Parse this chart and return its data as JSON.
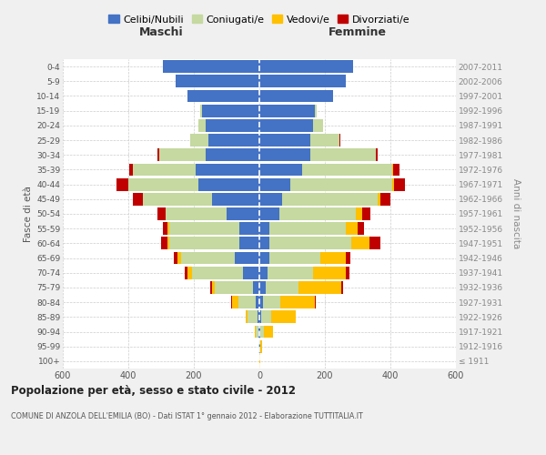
{
  "age_groups": [
    "100+",
    "95-99",
    "90-94",
    "85-89",
    "80-84",
    "75-79",
    "70-74",
    "65-69",
    "60-64",
    "55-59",
    "50-54",
    "45-49",
    "40-44",
    "35-39",
    "30-34",
    "25-29",
    "20-24",
    "15-19",
    "10-14",
    "5-9",
    "0-4"
  ],
  "birth_years": [
    "≤ 1911",
    "1912-1916",
    "1917-1921",
    "1922-1926",
    "1927-1931",
    "1932-1936",
    "1937-1941",
    "1942-1946",
    "1947-1951",
    "1952-1956",
    "1957-1961",
    "1962-1966",
    "1967-1971",
    "1972-1976",
    "1977-1981",
    "1982-1986",
    "1987-1991",
    "1992-1996",
    "1997-2001",
    "2002-2006",
    "2007-2011"
  ],
  "colors": {
    "celibe": "#4472c4",
    "coniugato": "#c5d9a0",
    "vedovo": "#ffc000",
    "divorziato": "#c00000"
  },
  "males": {
    "celibe": [
      1,
      1,
      3,
      5,
      10,
      20,
      50,
      75,
      60,
      60,
      100,
      145,
      185,
      195,
      165,
      155,
      165,
      175,
      220,
      255,
      295
    ],
    "coniugato": [
      0,
      1,
      8,
      30,
      55,
      115,
      155,
      165,
      215,
      215,
      185,
      210,
      215,
      190,
      140,
      55,
      20,
      5,
      0,
      0,
      0
    ],
    "vedovo": [
      0,
      0,
      2,
      8,
      18,
      10,
      15,
      10,
      5,
      5,
      0,
      0,
      0,
      0,
      0,
      0,
      0,
      0,
      0,
      0,
      0
    ],
    "divorziato": [
      0,
      0,
      0,
      0,
      2,
      5,
      8,
      12,
      20,
      15,
      25,
      30,
      35,
      12,
      5,
      2,
      0,
      0,
      0,
      0,
      0
    ]
  },
  "females": {
    "nubile": [
      1,
      2,
      3,
      5,
      10,
      20,
      25,
      30,
      30,
      30,
      60,
      70,
      95,
      130,
      155,
      155,
      165,
      170,
      225,
      265,
      285
    ],
    "coniugata": [
      0,
      1,
      10,
      30,
      55,
      100,
      140,
      155,
      250,
      235,
      235,
      290,
      310,
      275,
      200,
      90,
      30,
      5,
      0,
      0,
      0
    ],
    "vedova": [
      1,
      5,
      30,
      75,
      105,
      130,
      100,
      80,
      55,
      35,
      20,
      10,
      5,
      2,
      0,
      0,
      0,
      0,
      0,
      0,
      0
    ],
    "divorziata": [
      0,
      0,
      0,
      2,
      2,
      5,
      10,
      12,
      35,
      20,
      25,
      30,
      35,
      20,
      5,
      2,
      0,
      0,
      0,
      0,
      0
    ]
  },
  "title": "Popolazione per età, sesso e stato civile - 2012",
  "subtitle": "COMUNE DI ANZOLA DELL'EMILIA (BO) - Dati ISTAT 1° gennaio 2012 - Elaborazione TUTTITALIA.IT",
  "xlabel_left": "Maschi",
  "xlabel_right": "Femmine",
  "ylabel_left": "Fasce di età",
  "ylabel_right": "Anni di nascita",
  "xlim": 600,
  "legend_labels": [
    "Celibi/Nubili",
    "Coniugati/e",
    "Vedovi/e",
    "Divorziati/e"
  ],
  "bg_color": "#f0f0f0",
  "plot_bg_color": "#ffffff"
}
